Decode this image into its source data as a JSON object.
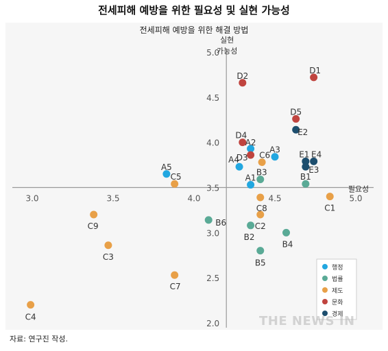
{
  "page": {
    "title": "전세피해 예방을 위한 필요성 및 실현 가능성",
    "source": "자료: 연구진 작성.",
    "watermark": "THE NEWS IN"
  },
  "chart_data": {
    "type": "scatter",
    "title": "전세피해 예방을 위한 해결 방법",
    "xlabel": "필요성",
    "ylabel": "실현\n가능성",
    "xlim": [
      2.9,
      5.1
    ],
    "ylim": [
      2.0,
      5.1
    ],
    "origin": {
      "x": 4.2,
      "y": 3.5
    },
    "x_ticks": [
      3.0,
      3.5,
      4.0,
      4.5,
      5.0
    ],
    "y_ticks": [
      2.0,
      2.5,
      3.0,
      3.5,
      4.0,
      4.5,
      5.0
    ],
    "legend_position": "bottom-right",
    "series": [
      {
        "name": "행정",
        "color": "#22a7e0",
        "points": [
          {
            "label": "A1",
            "x": 4.35,
            "y": 3.53
          },
          {
            "label": "A2",
            "x": 4.35,
            "y": 3.93
          },
          {
            "label": "A3",
            "x": 4.5,
            "y": 3.84
          },
          {
            "label": "A4",
            "x": 4.28,
            "y": 3.73
          },
          {
            "label": "A5",
            "x": 3.83,
            "y": 3.65
          }
        ]
      },
      {
        "name": "법률",
        "color": "#5aaa96",
        "points": [
          {
            "label": "B1",
            "x": 4.69,
            "y": 3.54
          },
          {
            "label": "B2",
            "x": 4.35,
            "y": 3.08
          },
          {
            "label": "B3",
            "x": 4.41,
            "y": 3.59
          },
          {
            "label": "B4",
            "x": 4.57,
            "y": 3.0
          },
          {
            "label": "B5",
            "x": 4.41,
            "y": 2.8
          },
          {
            "label": "B6",
            "x": 4.09,
            "y": 3.14
          }
        ]
      },
      {
        "name": "제도",
        "color": "#e8a048",
        "points": [
          {
            "label": "C1",
            "x": 4.84,
            "y": 3.4
          },
          {
            "label": "C2",
            "x": 4.41,
            "y": 3.2
          },
          {
            "label": "C3",
            "x": 3.47,
            "y": 2.86
          },
          {
            "label": "C4",
            "x": 2.99,
            "y": 2.2
          },
          {
            "label": "C5",
            "x": 3.88,
            "y": 3.54
          },
          {
            "label": "C6",
            "x": 4.42,
            "y": 3.78
          },
          {
            "label": "C7",
            "x": 3.88,
            "y": 2.53
          },
          {
            "label": "C8",
            "x": 4.41,
            "y": 3.39
          },
          {
            "label": "C9",
            "x": 3.38,
            "y": 3.2
          }
        ]
      },
      {
        "name": "문화",
        "color": "#c0443f",
        "points": [
          {
            "label": "D1",
            "x": 4.74,
            "y": 4.72
          },
          {
            "label": "D2",
            "x": 4.3,
            "y": 4.66
          },
          {
            "label": "D3",
            "x": 4.35,
            "y": 3.86
          },
          {
            "label": "D4",
            "x": 4.3,
            "y": 4.0
          },
          {
            "label": "D5",
            "x": 4.63,
            "y": 4.26
          }
        ]
      },
      {
        "name": "경제",
        "color": "#1d4e6e",
        "points": [
          {
            "label": "E1",
            "x": 4.69,
            "y": 3.79
          },
          {
            "label": "E2",
            "x": 4.63,
            "y": 4.14
          },
          {
            "label": "E3",
            "x": 4.69,
            "y": 3.73
          },
          {
            "label": "E4",
            "x": 4.74,
            "y": 3.79
          }
        ]
      }
    ]
  }
}
